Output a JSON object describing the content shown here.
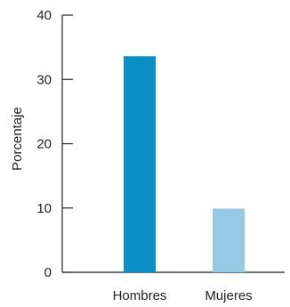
{
  "chart_data": {
    "type": "bar",
    "title": "",
    "xlabel": "",
    "ylabel": "Porcentaje",
    "ylim": [
      0,
      40
    ],
    "yticks": [
      0,
      10,
      20,
      30,
      40
    ],
    "categories": [
      "Hombres",
      "Mujeres"
    ],
    "values": [
      33.6,
      9.9
    ],
    "colors": [
      "#0a8fc7",
      "#96c9e3"
    ],
    "grid": false,
    "legend": "none"
  }
}
